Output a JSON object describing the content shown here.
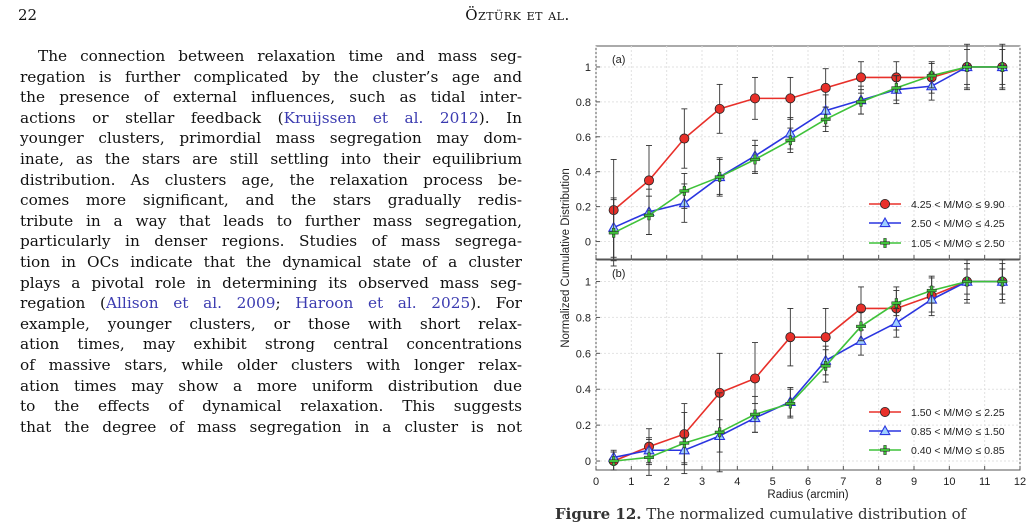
{
  "header": {
    "page_number": "22",
    "running_head": "Öztürk et al."
  },
  "paragraph_lines": [
    [
      "The connection between relaxation time and mass seg-"
    ],
    [
      "regation is further complicated by the cluster’s age and"
    ],
    [
      "the presence of external influences, such as tidal inter-"
    ],
    [
      "actions or stellar feedback (",
      {
        "cite": "Kruijssen et al. 2012"
      },
      ").  In"
    ],
    [
      "younger clusters, primordial mass segregation may dom-"
    ],
    [
      "inate, as the stars are still settling into their equilibrium"
    ],
    [
      "distribution. As clusters age, the relaxation process be-"
    ],
    [
      "comes more significant, and the stars gradually redis-"
    ],
    [
      "tribute in a way that leads to further mass segregation,"
    ],
    [
      "particularly in denser regions. Studies of mass segrega-"
    ],
    [
      "tion in OCs indicate that the dynamical state of a cluster"
    ],
    [
      "plays a pivotal role in determining its observed mass seg-"
    ],
    [
      "regation (",
      {
        "cite": "Allison et al. 2009"
      },
      "; ",
      {
        "cite": "Haroon et al. 2025"
      },
      ").   For"
    ],
    [
      "example, younger clusters, or those with short relax-"
    ],
    [
      "ation times, may exhibit strong central concentrations"
    ],
    [
      "of massive stars, while older clusters with longer relax-"
    ],
    [
      "ation times may show a more uniform distribution due"
    ],
    [
      "to the effects of dynamical relaxation.  This suggests"
    ],
    [
      "that the degree of mass segregation in a cluster is not"
    ]
  ],
  "caption": {
    "label": "Figure 12.",
    "text": "   The normalized cumulative distribution of"
  },
  "chart_data": [
    {
      "type": "line",
      "panel_label": "(a)",
      "xlim": [
        0,
        12
      ],
      "ylim": [
        -0.1,
        1.12
      ],
      "x_ticks": [
        0,
        1,
        2,
        3,
        4,
        5,
        6,
        7,
        8,
        9,
        10,
        11,
        12
      ],
      "y_ticks": [
        0,
        0.2,
        0.4,
        0.6,
        0.8,
        1
      ],
      "y_tick_labels": [
        "0",
        "0.2",
        "0.4",
        "0.6",
        "0.8",
        "1"
      ],
      "ylabel": "Normalized Cumulative Distribution",
      "legend_position": "bottom-right",
      "x": [
        0.5,
        1.5,
        2.5,
        3.5,
        4.5,
        5.5,
        6.5,
        7.5,
        8.5,
        9.5,
        10.5,
        11.5
      ],
      "series": [
        {
          "name": "4.25 < M/M⊙ ≤ 9.90",
          "color": "#e8302a",
          "marker": "circle",
          "values": [
            0.18,
            0.35,
            0.59,
            0.76,
            0.82,
            0.82,
            0.88,
            0.94,
            0.94,
            0.94,
            1.0,
            1.0
          ],
          "err": [
            0.29,
            0.2,
            0.17,
            0.14,
            0.12,
            0.12,
            0.11,
            0.09,
            0.09,
            0.09,
            0.13,
            0.13
          ]
        },
        {
          "name": "2.50 < M/M⊙ ≤ 4.25",
          "color": "#2a35e0",
          "marker": "triangle",
          "values": [
            0.08,
            0.17,
            0.22,
            0.37,
            0.49,
            0.62,
            0.75,
            0.81,
            0.87,
            0.89,
            1.0,
            1.0
          ],
          "err": [
            0.17,
            0.13,
            0.11,
            0.11,
            0.09,
            0.09,
            0.09,
            0.08,
            0.08,
            0.08,
            0.1,
            0.1
          ]
        },
        {
          "name": "1.05 < M/M⊙ ≤ 2.50",
          "color": "#3fc23a",
          "marker": "cross",
          "values": [
            0.05,
            0.15,
            0.29,
            0.37,
            0.47,
            0.58,
            0.7,
            0.8,
            0.88,
            0.95,
            1.0,
            1.0
          ],
          "err": [
            0.19,
            0.11,
            0.1,
            0.1,
            0.08,
            0.07,
            0.07,
            0.07,
            0.07,
            0.07,
            0.12,
            0.12
          ]
        }
      ]
    },
    {
      "type": "line",
      "panel_label": "(b)",
      "xlim": [
        0,
        12
      ],
      "ylim": [
        -0.05,
        1.12
      ],
      "x_ticks": [
        0,
        1,
        2,
        3,
        4,
        5,
        6,
        7,
        8,
        9,
        10,
        11,
        12
      ],
      "x_tick_labels": [
        "0",
        "1",
        "2",
        "3",
        "4",
        "5",
        "6",
        "7",
        "8",
        "9",
        "10",
        "11",
        "12"
      ],
      "y_ticks": [
        0,
        0.2,
        0.4,
        0.6,
        0.8,
        1
      ],
      "y_tick_labels": [
        "0",
        "0.2",
        "0.4",
        "0.6",
        "0.8",
        "1"
      ],
      "xlabel": "Radius (arcmin)",
      "legend_position": "bottom-right",
      "x": [
        0.5,
        1.5,
        2.5,
        3.5,
        4.5,
        5.5,
        6.5,
        7.5,
        8.5,
        9.5,
        10.5,
        11.5
      ],
      "series": [
        {
          "name": "1.50 < M/M⊙ ≤ 2.25",
          "color": "#e8302a",
          "marker": "circle",
          "values": [
            0.0,
            0.08,
            0.15,
            0.38,
            0.46,
            0.69,
            0.69,
            0.85,
            0.85,
            0.92,
            1.0,
            1.0
          ],
          "err": [
            0.05,
            0.1,
            0.17,
            0.22,
            0.2,
            0.16,
            0.16,
            0.12,
            0.12,
            0.11,
            0.1,
            0.1
          ]
        },
        {
          "name": "0.85 < M/M⊙ ≤ 1.50",
          "color": "#2a35e0",
          "marker": "triangle",
          "values": [
            0.02,
            0.06,
            0.06,
            0.14,
            0.24,
            0.33,
            0.56,
            0.67,
            0.77,
            0.9,
            1.0,
            1.0
          ],
          "err": [
            0.04,
            0.07,
            0.07,
            0.09,
            0.08,
            0.08,
            0.08,
            0.08,
            0.08,
            0.07,
            0.07,
            0.07
          ]
        },
        {
          "name": "0.40 < M/M⊙ ≤ 0.85",
          "color": "#3fc23a",
          "marker": "cross",
          "values": [
            0.0,
            0.02,
            0.1,
            0.16,
            0.26,
            0.32,
            0.53,
            0.75,
            0.88,
            0.95,
            1.0,
            1.0
          ],
          "err": [
            0.05,
            0.1,
            0.17,
            0.22,
            0.1,
            0.08,
            0.09,
            0.08,
            0.07,
            0.07,
            0.12,
            0.12
          ]
        }
      ]
    }
  ]
}
